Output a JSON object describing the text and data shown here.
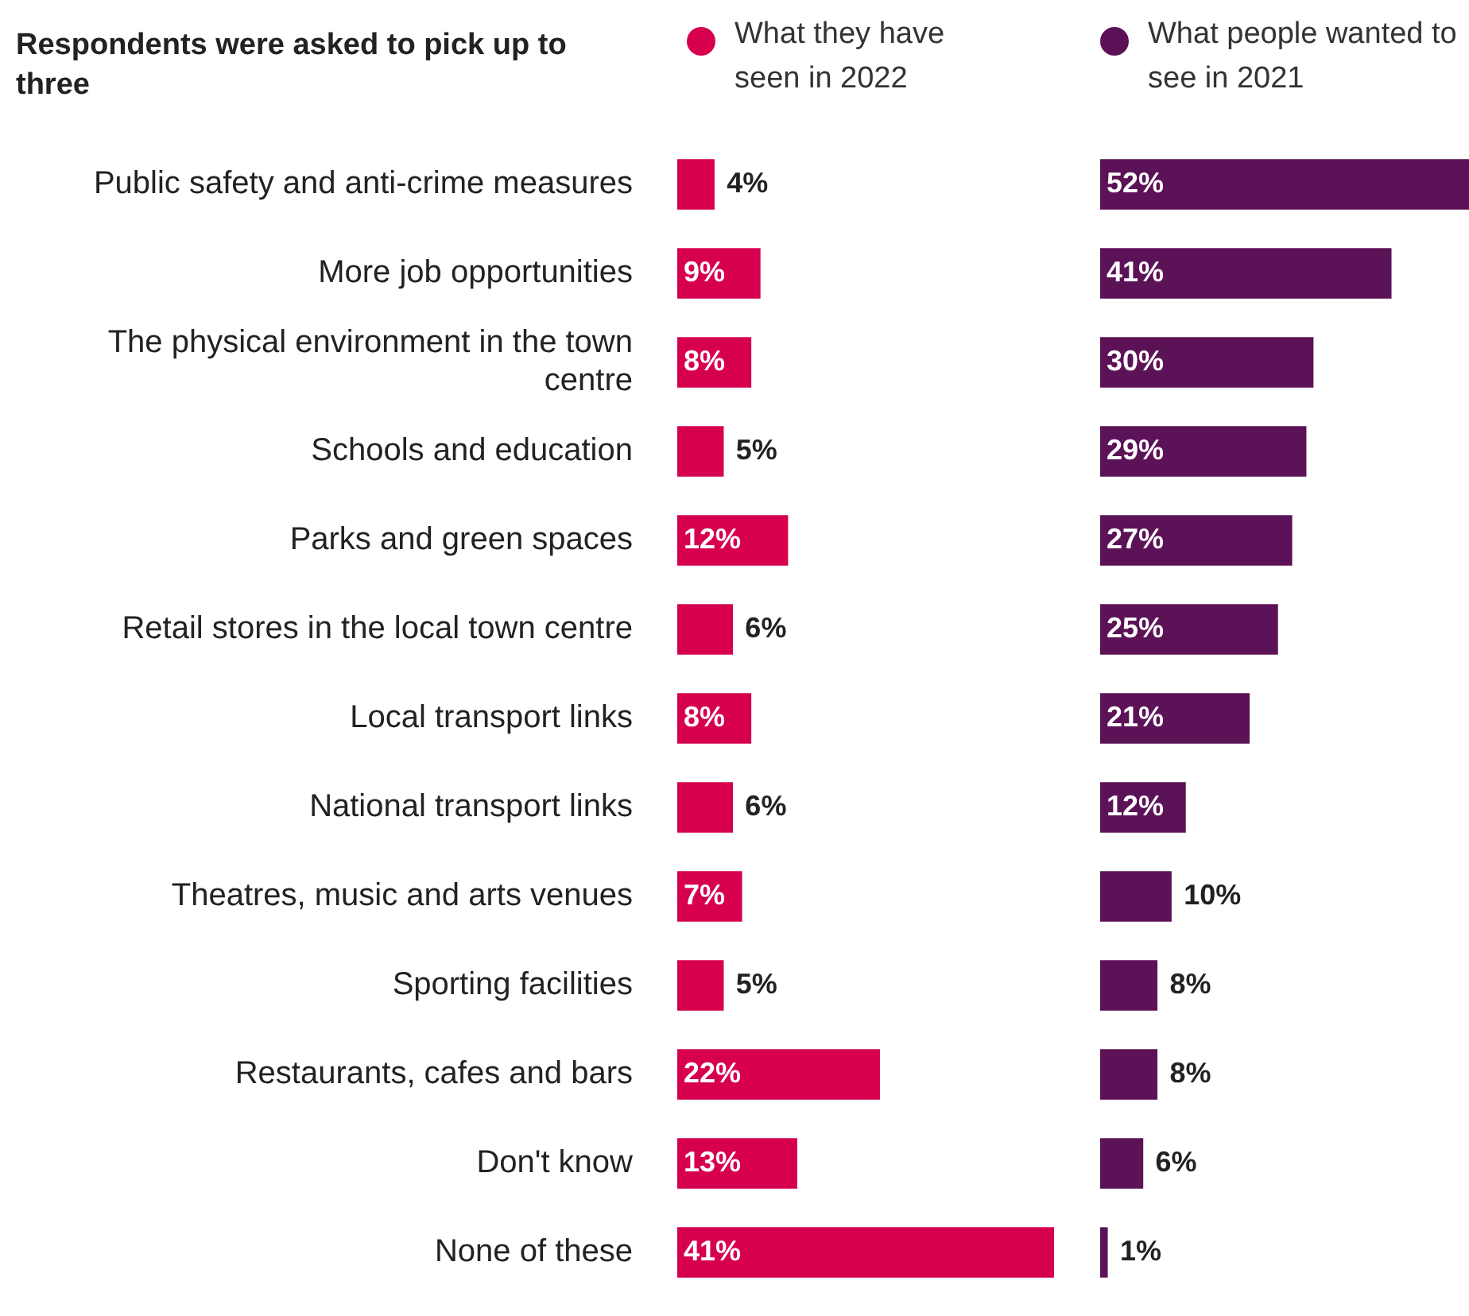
{
  "chart_data": [
    {
      "type": "bar",
      "orientation": "horizontal",
      "title": "Respondents were asked to pick up to three",
      "categories": [
        "Public safety and anti-crime measures",
        "More job opportunities",
        "The physical environment in the town centre",
        "Schools and education",
        "Parks and green spaces",
        "Retail stores in the local town centre",
        "Local transport links",
        "National transport links",
        "Theatres, music and arts venues",
        "Sporting facilities",
        "Restaurants, cafes and bars",
        "Don't know",
        "None of these"
      ],
      "series": [
        {
          "name": "What they have seen in 2022",
          "color": "#d6004f",
          "values": [
            4,
            9,
            8,
            5,
            12,
            6,
            8,
            6,
            7,
            5,
            22,
            13,
            41
          ],
          "value_labels": [
            "4%",
            "9%",
            "8%",
            "5%",
            "12%",
            "6%",
            "8%",
            "6%",
            "7%",
            "5%",
            "22%",
            "13%",
            "41%"
          ]
        }
      ],
      "legend": "top",
      "tick_labels": "y"
    },
    {
      "type": "bar",
      "orientation": "horizontal",
      "categories": [
        null,
        null,
        null,
        null,
        null,
        null,
        null,
        null,
        null,
        null,
        null,
        null,
        null
      ],
      "series": [
        {
          "name": "What people wanted to see in 2021",
          "color": "#5c1257",
          "values": [
            52,
            41,
            30,
            29,
            27,
            25,
            21,
            12,
            10,
            8,
            8,
            6,
            1
          ],
          "value_labels": [
            "52%",
            "41%",
            "30%",
            "29%",
            "27%",
            "25%",
            "21%",
            "12%",
            "10%",
            "8%",
            "8%",
            "6%",
            "1%"
          ]
        }
      ],
      "legend": "top",
      "tick_labels": false
    }
  ]
}
